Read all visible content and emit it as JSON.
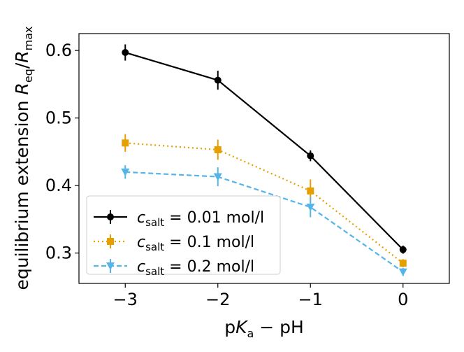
{
  "chart_data": {
    "type": "line",
    "xlabel": {
      "pre": "p",
      "italic": "K",
      "sub": "a",
      "post": " − pH"
    },
    "ylabel": {
      "pre": "equilibrium extension ",
      "num": "R",
      "num_sub": "eq",
      "slash": "/",
      "den": "R",
      "den_sub": "max"
    },
    "xlim": [
      -3.5,
      0.5
    ],
    "ylim": [
      0.255,
      0.625
    ],
    "x_ticks": [
      -3,
      -2,
      -1,
      0
    ],
    "x_tick_labels": [
      "−3",
      "−2",
      "−1",
      "0"
    ],
    "y_ticks": [
      0.3,
      0.4,
      0.5,
      0.6
    ],
    "y_tick_labels": [
      "0.3",
      "0.4",
      "0.5",
      "0.6"
    ],
    "grid": false,
    "legend_position": "lower-left",
    "series": [
      {
        "name": "0.01 mol/l",
        "legend_prefix": "c",
        "legend_sub": "salt",
        "legend_eq": " = ",
        "color": "#000000",
        "linestyle": "solid",
        "marker": "circle",
        "x": [
          -3,
          -2,
          -1,
          0
        ],
        "y": [
          0.597,
          0.556,
          0.444,
          0.305
        ],
        "yerr": [
          0.012,
          0.014,
          0.008,
          0.006
        ]
      },
      {
        "name": "0.1 mol/l",
        "legend_prefix": "c",
        "legend_sub": "salt",
        "legend_eq": " = ",
        "color": "#e69f00",
        "linestyle": "dotted",
        "marker": "square",
        "x": [
          -3,
          -2,
          -1,
          0
        ],
        "y": [
          0.463,
          0.453,
          0.392,
          0.285
        ],
        "yerr": [
          0.013,
          0.015,
          0.017,
          0.006
        ]
      },
      {
        "name": "0.2 mol/l",
        "legend_prefix": "c",
        "legend_sub": "salt",
        "legend_eq": " = ",
        "color": "#56b4e9",
        "linestyle": "dashed",
        "marker": "triangle-down",
        "x": [
          -3,
          -2,
          -1,
          0
        ],
        "y": [
          0.42,
          0.413,
          0.368,
          0.272
        ],
        "yerr": [
          0.01,
          0.014,
          0.015,
          0.006
        ]
      }
    ]
  }
}
